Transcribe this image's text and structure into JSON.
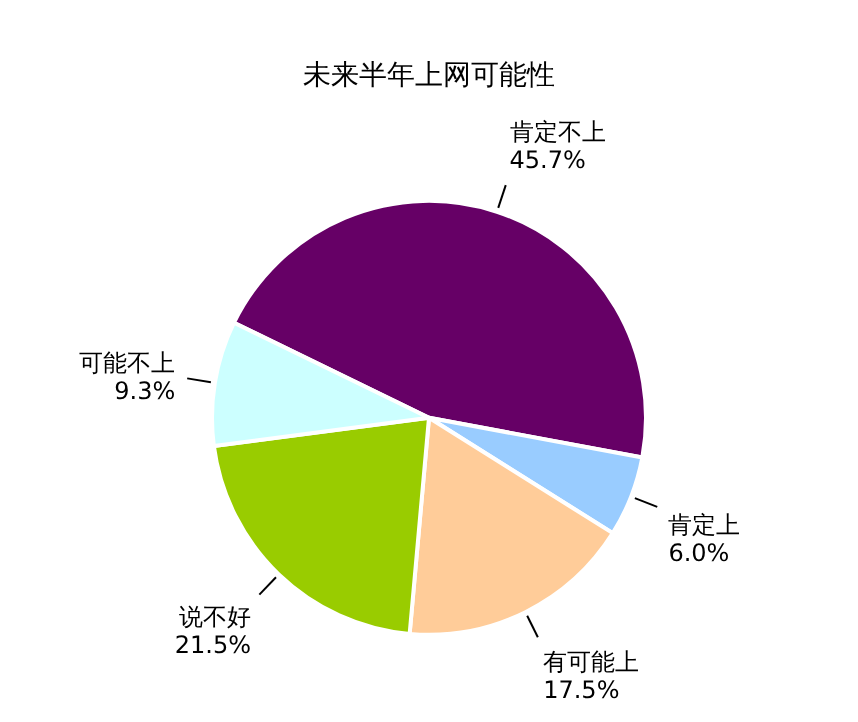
{
  "chart_data": {
    "type": "pie",
    "title": "未来半年上网可能性",
    "categories": [
      "肯定不上",
      "肯定上",
      "有可能上",
      "说不好",
      "可能不上"
    ],
    "values": [
      45.7,
      6.0,
      17.5,
      21.5,
      9.3
    ],
    "value_labels": [
      "45.7%",
      "6.0%",
      "17.5%",
      "21.5%",
      "9.3%"
    ],
    "colors": [
      "#660066",
      "#99ccff",
      "#ffcc99",
      "#99cc00",
      "#ccffff"
    ],
    "legend": false
  }
}
